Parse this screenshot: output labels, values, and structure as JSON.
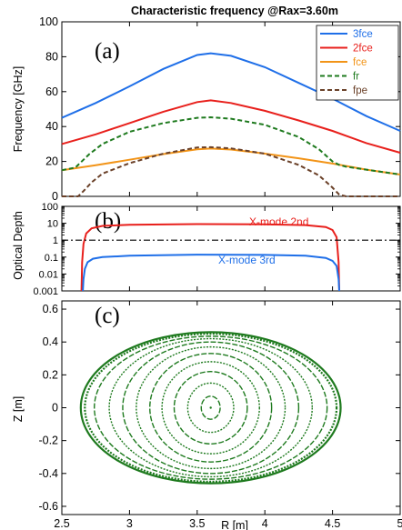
{
  "title": "Characteristic frequency @Rax=3.60m",
  "chart_data": [
    {
      "type": "line",
      "panel_label": "(a)",
      "ylabel": "Frequency [GHz]",
      "xlim": [
        2.5,
        5.0
      ],
      "ylim": [
        0,
        100
      ],
      "yticks": [
        "0",
        "20",
        "40",
        "60",
        "80",
        "100"
      ],
      "legend_position": "top-right",
      "series": [
        {
          "name": "3fce",
          "color": "#1f6fe8",
          "style": "solid",
          "x": [
            2.5,
            2.75,
            3.0,
            3.25,
            3.5,
            3.6,
            3.75,
            4.0,
            4.25,
            4.5,
            4.75,
            5.0
          ],
          "y": [
            45,
            53.5,
            63,
            73,
            81,
            82,
            80.5,
            74,
            65,
            56,
            46,
            37.5
          ]
        },
        {
          "name": "2fce",
          "color": "#e8201c",
          "style": "solid",
          "x": [
            2.5,
            2.75,
            3.0,
            3.25,
            3.5,
            3.6,
            3.75,
            4.0,
            4.25,
            4.5,
            4.75,
            5.0
          ],
          "y": [
            30,
            35.5,
            42,
            48.5,
            54,
            55,
            53.5,
            49,
            43.5,
            37.5,
            30.5,
            25
          ]
        },
        {
          "name": "fce",
          "color": "#f29418",
          "style": "solid",
          "x": [
            2.5,
            2.75,
            3.0,
            3.25,
            3.5,
            3.6,
            3.75,
            4.0,
            4.25,
            4.5,
            4.75,
            5.0
          ],
          "y": [
            15,
            17.8,
            21,
            24.2,
            27,
            27.4,
            26.8,
            24.5,
            21.8,
            18.8,
            15.3,
            12.5
          ]
        },
        {
          "name": "fr",
          "color": "#1e7a1e",
          "style": "dashed",
          "x": [
            2.5,
            2.6,
            2.7,
            2.8,
            3.0,
            3.25,
            3.5,
            3.6,
            3.75,
            4.0,
            4.25,
            4.4,
            4.5,
            4.55,
            4.6,
            4.75,
            5.0
          ],
          "y": [
            15,
            16.5,
            24,
            30,
            37,
            42,
            45,
            45.3,
            44.5,
            41,
            34,
            27,
            20,
            18,
            17,
            15.3,
            12.5
          ]
        },
        {
          "name": "fpe",
          "color": "#6a4028",
          "style": "dashed",
          "x": [
            2.5,
            2.62,
            2.66,
            2.72,
            2.8,
            3.0,
            3.25,
            3.5,
            3.6,
            3.75,
            4.0,
            4.25,
            4.4,
            4.5,
            4.55,
            4.6,
            4.75,
            5.0
          ],
          "y": [
            0,
            0,
            3,
            8,
            13,
            19,
            24.5,
            28,
            28.2,
            27.5,
            24.5,
            18,
            12,
            5,
            1,
            0,
            0,
            0
          ]
        }
      ]
    },
    {
      "type": "line",
      "panel_label": "(b)",
      "ylabel": "Optical Depth",
      "yscale": "log",
      "xlim": [
        2.5,
        5.0
      ],
      "ylim": [
        0.001,
        100
      ],
      "yticks": [
        "0.001",
        "0.01",
        "0.1",
        "1",
        "10",
        "100"
      ],
      "series": [
        {
          "name": "X-mode 2nd",
          "color": "#e8201c",
          "style": "solid",
          "x": [
            2.645,
            2.65,
            2.66,
            2.68,
            2.72,
            2.8,
            3.0,
            3.5,
            4.0,
            4.3,
            4.45,
            4.5,
            4.53,
            4.545,
            4.55
          ],
          "y": [
            0.001,
            0.05,
            0.6,
            2.5,
            5,
            7,
            8.2,
            9,
            8.6,
            7.8,
            6,
            4,
            1.5,
            0.05,
            0.001
          ]
        },
        {
          "name": "X-mode 3rd",
          "color": "#1f6fe8",
          "style": "solid",
          "x": [
            2.655,
            2.66,
            2.67,
            2.69,
            2.73,
            2.8,
            3.0,
            3.5,
            4.0,
            4.3,
            4.45,
            4.5,
            4.53,
            4.545,
            4.55
          ],
          "y": [
            0.001,
            0.005,
            0.02,
            0.05,
            0.08,
            0.1,
            0.12,
            0.14,
            0.135,
            0.12,
            0.09,
            0.06,
            0.03,
            0.005,
            0.001
          ]
        },
        {
          "color": "#000000",
          "style": "dashdot",
          "x": [
            2.5,
            5.0
          ],
          "y": [
            1,
            1
          ]
        }
      ]
    },
    {
      "type": "scatter",
      "panel_label": "(c)",
      "ylabel": "Z [m]",
      "xlabel": "R  [m]",
      "xlim": [
        2.5,
        5.0
      ],
      "ylim": [
        -0.65,
        0.65
      ],
      "xticks": [
        "2.5",
        "3",
        "3.5",
        "4",
        "4.5",
        "5"
      ],
      "yticks": [
        "-0.6",
        "-0.4",
        "-0.2",
        "0",
        "0.2",
        "0.4",
        "0.6"
      ],
      "center": [
        3.6,
        0.0
      ],
      "color": "#1e7a1e",
      "surfaces": [
        {
          "a": 0.07,
          "b": 0.07
        },
        {
          "a": 0.17,
          "b": 0.15
        },
        {
          "a": 0.27,
          "b": 0.22
        },
        {
          "a": 0.36,
          "b": 0.28
        },
        {
          "a": 0.45,
          "b": 0.33
        },
        {
          "a": 0.55,
          "b": 0.37
        },
        {
          "a": 0.65,
          "b": 0.4
        },
        {
          "a": 0.75,
          "b": 0.42
        },
        {
          "a": 0.86,
          "b": 0.435
        },
        {
          "a": 0.93,
          "b": 0.45
        },
        {
          "a": 0.96,
          "b": 0.46
        }
      ]
    }
  ]
}
